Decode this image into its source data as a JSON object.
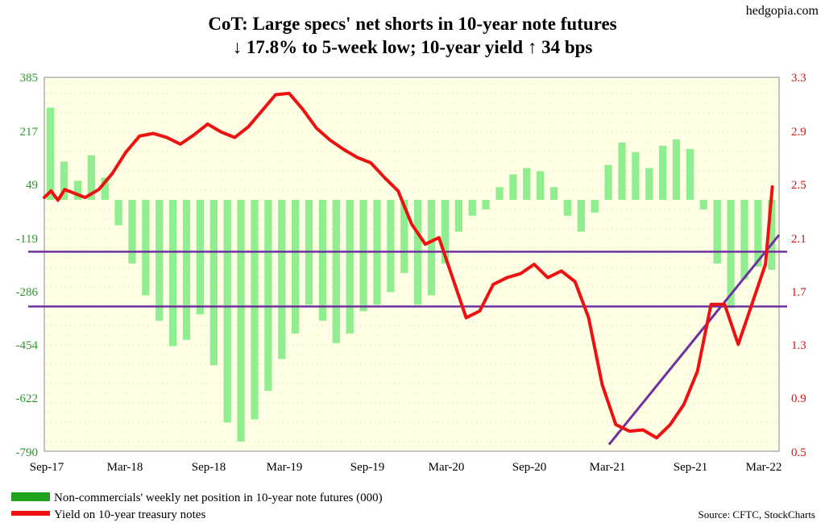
{
  "title_line1": "CoT: Large specs' net shorts in 10-year note futures",
  "title_line2": "↓ 17.8% to 5-week low; 10-year yield ↑ 34 bps",
  "brand": "hedgopia.com",
  "source": "Source: CFTC, StockCharts",
  "colors": {
    "bars": "#90ee90",
    "line": "#ee1111",
    "trend": "#7030a0",
    "plot_bg": "#ffffe6",
    "left_axis": "#2a9a2a",
    "right_axis": "#e01010"
  },
  "chart_data": {
    "type": "bar+line",
    "x_ticks": [
      "Sep-17",
      "Mar-18",
      "Sep-18",
      "Mar-19",
      "Sep-19",
      "Mar-20",
      "Sep-20",
      "Mar-21",
      "Sep-21",
      "Mar-22"
    ],
    "y_left": {
      "ticks": [
        "385",
        "217",
        "49",
        "-119",
        "-286",
        "-454",
        "-622",
        "-790"
      ],
      "range": [
        -790,
        385
      ]
    },
    "y_right": {
      "ticks": [
        "3.3",
        "2.9",
        "2.5",
        "2.1",
        "1.7",
        "1.3",
        "0.9",
        "0.5"
      ],
      "range": [
        0.5,
        3.3
      ]
    },
    "x_range_months": [
      0,
      54
    ],
    "legend": [
      "Non-commercials' weekly net position in 10-year note futures (000)",
      "Yield on 10-year treasury notes"
    ],
    "net_position_weekly": [
      {
        "x": 0.0,
        "y": 290
      },
      {
        "x": 1.0,
        "y": 120
      },
      {
        "x": 2.0,
        "y": 60
      },
      {
        "x": 3.0,
        "y": 140
      },
      {
        "x": 4.0,
        "y": 70
      },
      {
        "x": 5.0,
        "y": -80
      },
      {
        "x": 6.0,
        "y": -200
      },
      {
        "x": 7.0,
        "y": -300
      },
      {
        "x": 8.0,
        "y": -380
      },
      {
        "x": 9.0,
        "y": -460
      },
      {
        "x": 10.0,
        "y": -440
      },
      {
        "x": 11.0,
        "y": -360
      },
      {
        "x": 12.0,
        "y": -520
      },
      {
        "x": 13.0,
        "y": -700
      },
      {
        "x": 14.0,
        "y": -760
      },
      {
        "x": 15.0,
        "y": -690
      },
      {
        "x": 16.0,
        "y": -600
      },
      {
        "x": 17.0,
        "y": -500
      },
      {
        "x": 18.0,
        "y": -420
      },
      {
        "x": 19.0,
        "y": -330
      },
      {
        "x": 20.0,
        "y": -380
      },
      {
        "x": 21.0,
        "y": -450
      },
      {
        "x": 22.0,
        "y": -420
      },
      {
        "x": 23.0,
        "y": -350
      },
      {
        "x": 24.0,
        "y": -330
      },
      {
        "x": 25.0,
        "y": -290
      },
      {
        "x": 26.0,
        "y": -230
      },
      {
        "x": 27.0,
        "y": -330
      },
      {
        "x": 28.0,
        "y": -300
      },
      {
        "x": 29.0,
        "y": -200
      },
      {
        "x": 30.0,
        "y": -100
      },
      {
        "x": 31.0,
        "y": -50
      },
      {
        "x": 32.0,
        "y": -30
      },
      {
        "x": 33.0,
        "y": 40
      },
      {
        "x": 34.0,
        "y": 80
      },
      {
        "x": 35.0,
        "y": 100
      },
      {
        "x": 36.0,
        "y": 90
      },
      {
        "x": 37.0,
        "y": 40
      },
      {
        "x": 38.0,
        "y": -50
      },
      {
        "x": 39.0,
        "y": -100
      },
      {
        "x": 40.0,
        "y": -40
      },
      {
        "x": 41.0,
        "y": 110
      },
      {
        "x": 42.0,
        "y": 180
      },
      {
        "x": 43.0,
        "y": 150
      },
      {
        "x": 44.0,
        "y": 100
      },
      {
        "x": 45.0,
        "y": 170
      },
      {
        "x": 46.0,
        "y": 190
      },
      {
        "x": 47.0,
        "y": 160
      },
      {
        "x": 48.0,
        "y": -30
      },
      {
        "x": 49.0,
        "y": -200
      },
      {
        "x": 50.0,
        "y": -340
      },
      {
        "x": 51.0,
        "y": -250
      },
      {
        "x": 52.0,
        "y": -210
      },
      {
        "x": 53.0,
        "y": -220
      }
    ],
    "yield_10y": [
      {
        "x": 0.0,
        "y": 2.4
      },
      {
        "x": 0.5,
        "y": 2.45
      },
      {
        "x": 1.0,
        "y": 2.38
      },
      {
        "x": 1.5,
        "y": 2.46
      },
      {
        "x": 2.0,
        "y": 2.44
      },
      {
        "x": 3.0,
        "y": 2.4
      },
      {
        "x": 4.0,
        "y": 2.46
      },
      {
        "x": 5.0,
        "y": 2.58
      },
      {
        "x": 6.0,
        "y": 2.74
      },
      {
        "x": 7.0,
        "y": 2.86
      },
      {
        "x": 8.0,
        "y": 2.88
      },
      {
        "x": 9.0,
        "y": 2.85
      },
      {
        "x": 10.0,
        "y": 2.8
      },
      {
        "x": 11.0,
        "y": 2.87
      },
      {
        "x": 12.0,
        "y": 2.95
      },
      {
        "x": 13.0,
        "y": 2.89
      },
      {
        "x": 14.0,
        "y": 2.85
      },
      {
        "x": 15.0,
        "y": 2.93
      },
      {
        "x": 16.0,
        "y": 3.05
      },
      {
        "x": 17.0,
        "y": 3.17
      },
      {
        "x": 18.0,
        "y": 3.18
      },
      {
        "x": 19.0,
        "y": 3.06
      },
      {
        "x": 20.0,
        "y": 2.92
      },
      {
        "x": 21.0,
        "y": 2.83
      },
      {
        "x": 22.0,
        "y": 2.76
      },
      {
        "x": 23.0,
        "y": 2.7
      },
      {
        "x": 24.0,
        "y": 2.66
      },
      {
        "x": 25.0,
        "y": 2.55
      },
      {
        "x": 26.0,
        "y": 2.45
      },
      {
        "x": 27.0,
        "y": 2.2
      },
      {
        "x": 28.0,
        "y": 2.05
      },
      {
        "x": 29.0,
        "y": 2.1
      },
      {
        "x": 30.0,
        "y": 1.8
      },
      {
        "x": 31.0,
        "y": 1.5
      },
      {
        "x": 32.0,
        "y": 1.55
      },
      {
        "x": 33.0,
        "y": 1.75
      },
      {
        "x": 34.0,
        "y": 1.8
      },
      {
        "x": 35.0,
        "y": 1.83
      },
      {
        "x": 36.0,
        "y": 1.9
      },
      {
        "x": 37.0,
        "y": 1.8
      },
      {
        "x": 38.0,
        "y": 1.85
      },
      {
        "x": 39.0,
        "y": 1.77
      },
      {
        "x": 40.0,
        "y": 1.5
      },
      {
        "x": 41.0,
        "y": 1.0
      },
      {
        "x": 42.0,
        "y": 0.7
      },
      {
        "x": 43.0,
        "y": 0.65
      },
      {
        "x": 44.0,
        "y": 0.66
      },
      {
        "x": 45.0,
        "y": 0.6
      },
      {
        "x": 46.0,
        "y": 0.7
      },
      {
        "x": 47.0,
        "y": 0.85
      },
      {
        "x": 48.0,
        "y": 1.1
      },
      {
        "x": 49.0,
        "y": 1.6
      },
      {
        "x": 50.0,
        "y": 1.6
      },
      {
        "x": 51.0,
        "y": 1.3
      },
      {
        "x": 52.0,
        "y": 1.6
      },
      {
        "x": 53.0,
        "y": 1.9
      },
      {
        "x": 53.5,
        "y": 2.48
      }
    ],
    "horizontal_levels_left": [
      -163,
      -335
    ],
    "trendline_right": [
      {
        "x": 41.5,
        "y": 0.55
      },
      {
        "x": 54,
        "y": 2.12
      }
    ]
  }
}
